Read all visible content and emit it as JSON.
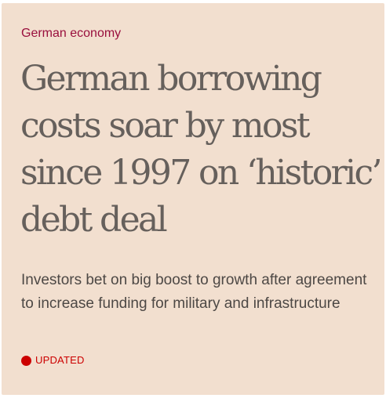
{
  "article": {
    "topic": "German economy",
    "headline": "German borrowing costs soar by most since 1997 on ‘historic’ debt deal",
    "standfirst": "Investors bet on big boost to growth after agreement to increase funding for military and infrastructure",
    "status": {
      "label": "UPDATED",
      "icon": "red-dot-icon",
      "color": "#cc0000"
    }
  },
  "theme": {
    "background": "#f2dfcf",
    "topic_color": "#990f3d",
    "headline_color": "#66605c",
    "standfirst_color": "#4d4845"
  }
}
